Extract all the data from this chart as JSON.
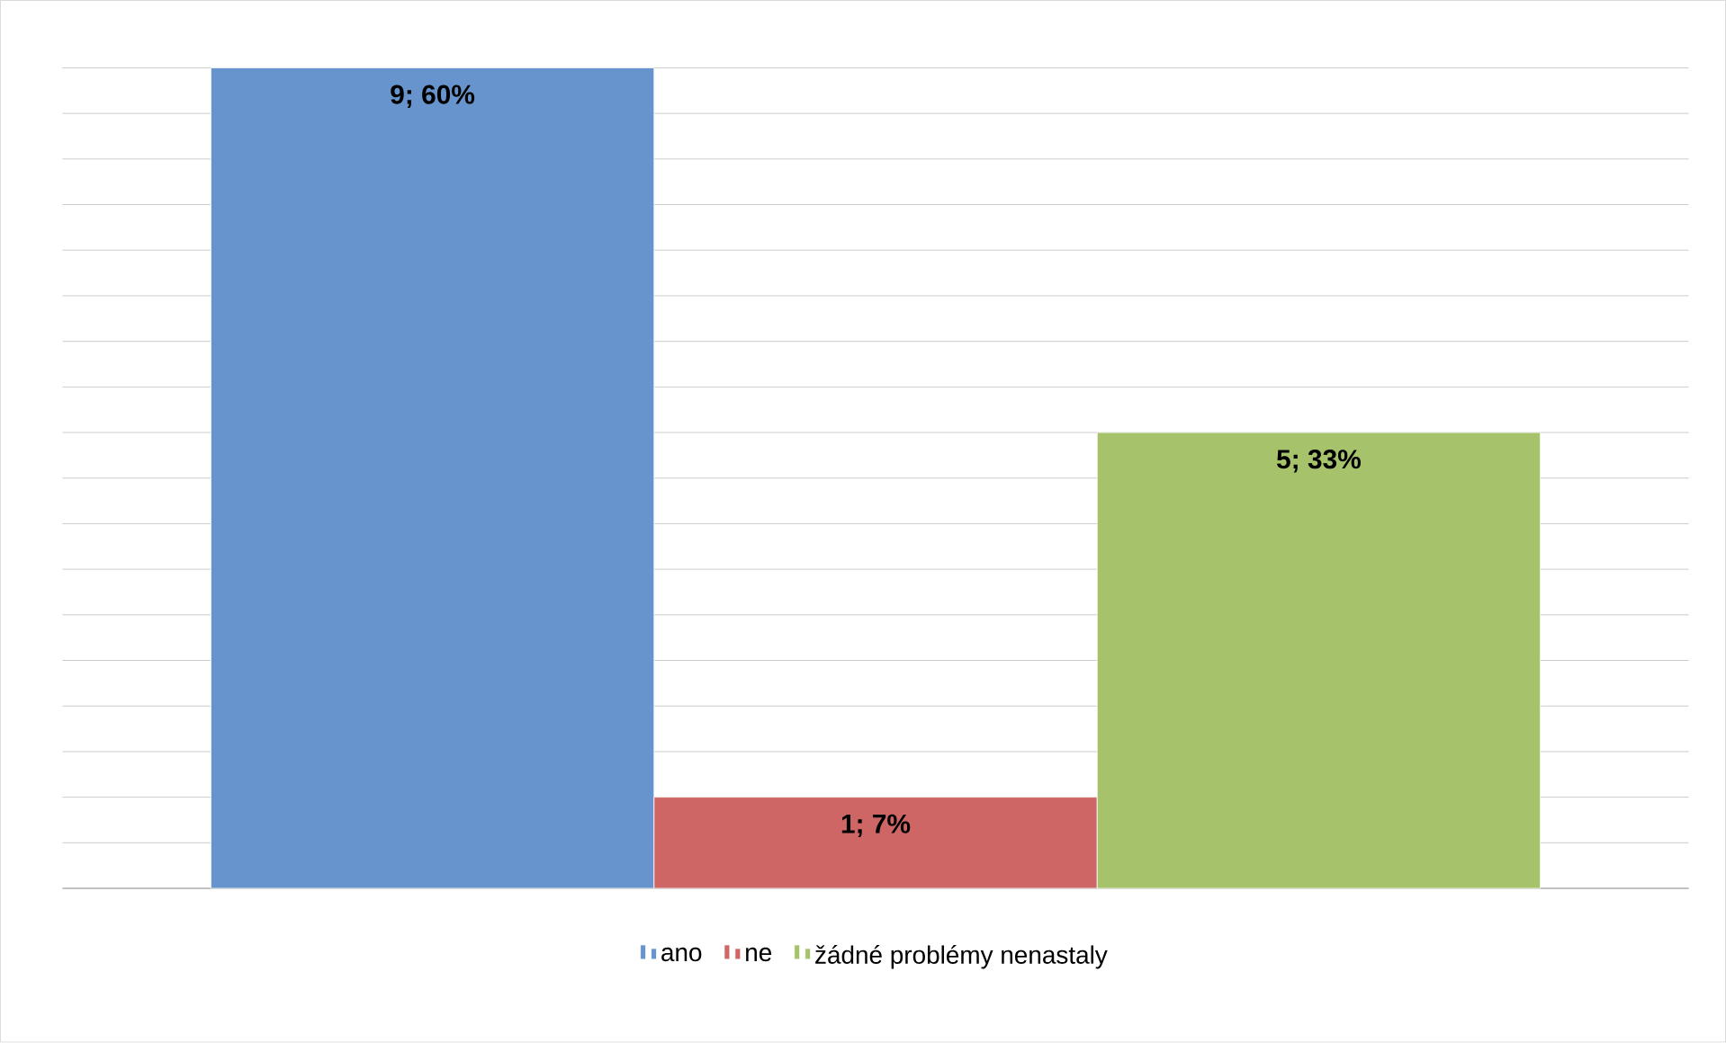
{
  "chart_data": {
    "type": "bar",
    "categories": [
      null
    ],
    "series": [
      {
        "name": "ano",
        "color": "#6794cc",
        "values": [
          9
        ],
        "value_labels": [
          "9; 60%"
        ]
      },
      {
        "name": "ne",
        "color": "#cd6664",
        "values": [
          1
        ],
        "value_labels": [
          "1; 7%"
        ]
      },
      {
        "name": "žádné problémy nenastaly",
        "color": "#a6c26a",
        "values": [
          5
        ],
        "value_labels": [
          "5; 33%"
        ]
      }
    ],
    "grid": "y",
    "legend": "bottom",
    "tick_labels": false
  }
}
